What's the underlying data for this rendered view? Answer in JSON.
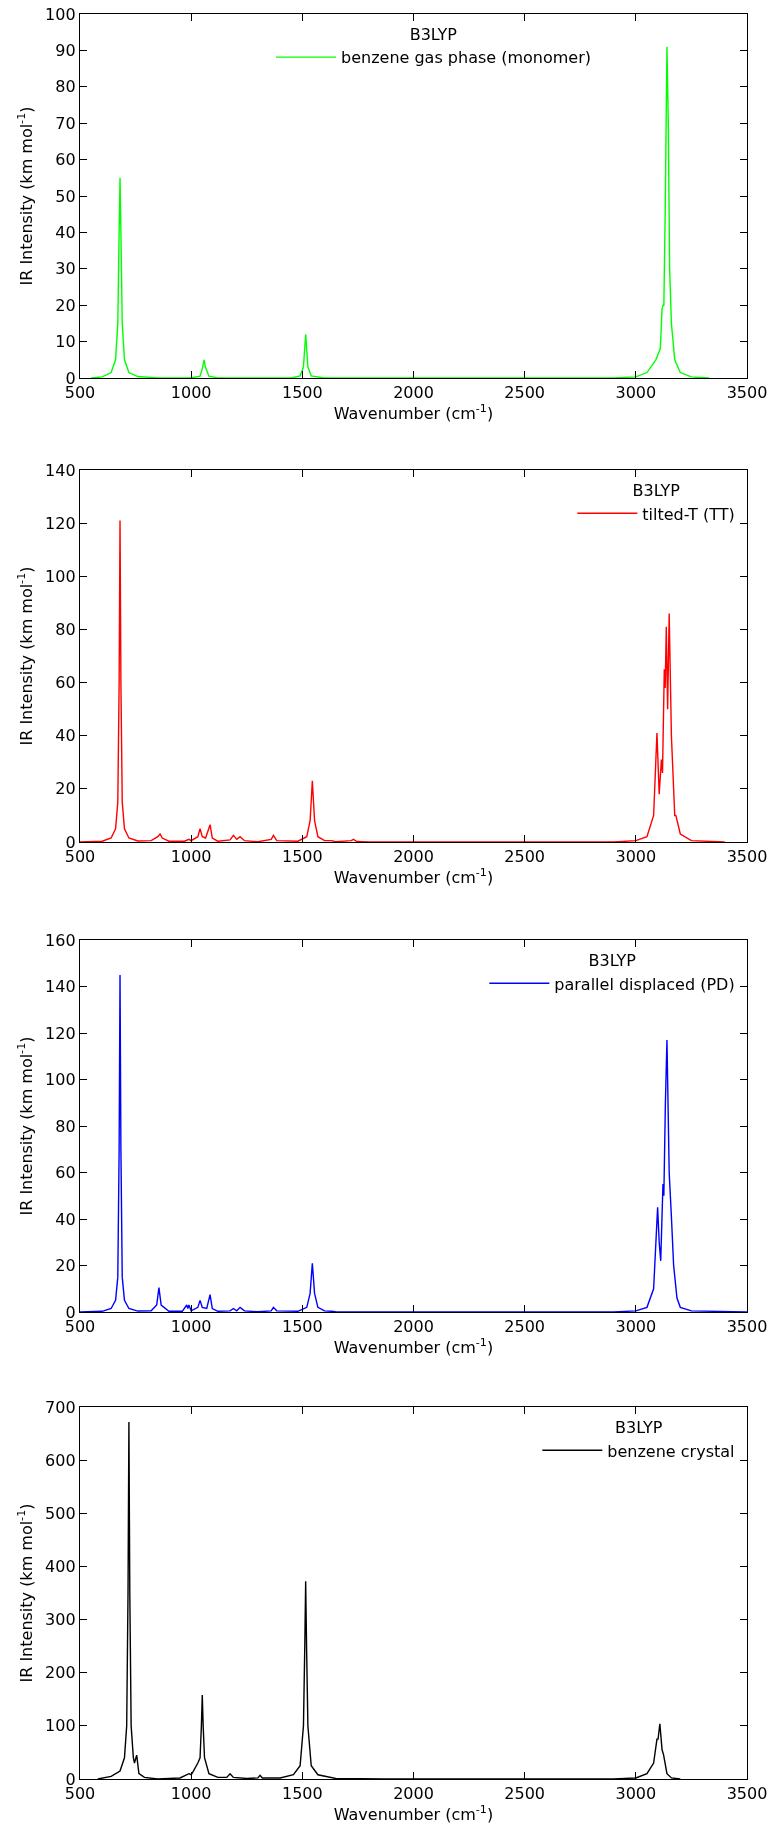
{
  "chart_data": [
    {
      "type": "line",
      "xlabel": "Wavenumber (cm$^{-1}$)",
      "ylabel": "IR Intensity (km mol$^{-1}$)",
      "legend_title": "B3LYP",
      "legend": "top",
      "xlim": [
        500,
        3500
      ],
      "ylim": [
        0,
        100
      ],
      "xticks": [
        500,
        1000,
        1500,
        2000,
        2500,
        3000,
        3500
      ],
      "yticks": [
        0,
        10,
        20,
        30,
        40,
        50,
        60,
        70,
        80,
        90,
        100
      ],
      "series": [
        {
          "name": "benzene gas phase (monomer)",
          "color": "#00ff00",
          "x": [
            550,
            600,
            640,
            660,
            670,
            676,
            680,
            684,
            690,
            700,
            720,
            760,
            850,
            1000,
            1040,
            1052,
            1058,
            1064,
            1080,
            1120,
            1450,
            1490,
            1505,
            1515,
            1525,
            1540,
            1600,
            2900,
            3000,
            3050,
            3090,
            3110,
            3118,
            3122,
            3126,
            3132,
            3140,
            3146,
            3152,
            3160,
            3175,
            3200,
            3250,
            3330
          ],
          "values": [
            0,
            0.3,
            1.5,
            5,
            15,
            40,
            55,
            40,
            15,
            5,
            1.5,
            0.4,
            0,
            0,
            0.5,
            3,
            5,
            3,
            0.5,
            0,
            0,
            0.6,
            3,
            12,
            3,
            0.6,
            0,
            0,
            0.3,
            1.5,
            5,
            8,
            19,
            20,
            20,
            45,
            91,
            70,
            30,
            15,
            5,
            1.5,
            0.3,
            0
          ]
        }
      ]
    },
    {
      "type": "line",
      "xlabel": "Wavenumber (cm$^{-1}$)",
      "ylabel": "IR Intensity (km mol$^{-1}$)",
      "legend_title": "B3LYP",
      "legend": "top right",
      "xlim": [
        500,
        3500
      ],
      "ylim": [
        0,
        140
      ],
      "xticks": [
        500,
        1000,
        1500,
        2000,
        2500,
        3000,
        3500
      ],
      "yticks": [
        0,
        20,
        40,
        60,
        80,
        100,
        120,
        140
      ],
      "series": [
        {
          "name": "tilted-T (TT)",
          "color": "#ff0000",
          "x": [
            500,
            600,
            640,
            660,
            670,
            676,
            680,
            684,
            690,
            700,
            720,
            760,
            820,
            850,
            860,
            870,
            900,
            970,
            990,
            1000,
            1030,
            1040,
            1050,
            1065,
            1085,
            1095,
            1120,
            1175,
            1190,
            1205,
            1220,
            1240,
            1300,
            1360,
            1370,
            1385,
            1480,
            1520,
            1535,
            1545,
            1555,
            1570,
            1600,
            1630,
            1650,
            1720,
            1730,
            1745,
            1800,
            2900,
            3000,
            3050,
            3080,
            3095,
            3105,
            3115,
            3120,
            3128,
            3132,
            3137,
            3143,
            3150,
            3160,
            3175,
            3180,
            3200,
            3250,
            3400
          ],
          "values": [
            0,
            0.3,
            1.5,
            5,
            15,
            60,
            121,
            60,
            15,
            5,
            1.5,
            0.4,
            0.5,
            2,
            3,
            1.5,
            0.3,
            0.3,
            1,
            0.5,
            2,
            5,
            2,
            1.5,
            6.5,
            1.5,
            0.3,
            0.8,
            2.5,
            1,
            2,
            0.5,
            0.1,
            1,
            2.5,
            0.5,
            0.3,
            2,
            8,
            23,
            8,
            2,
            0.5,
            0.5,
            0.1,
            0.5,
            1,
            0.2,
            0,
            0,
            0.5,
            2,
            10,
            41,
            18,
            31,
            26,
            65,
            58,
            81,
            50,
            86,
            40,
            10,
            10,
            3,
            0.5,
            0
          ]
        }
      ]
    },
    {
      "type": "line",
      "xlabel": "Wavenumber (cm$^{-1}$)",
      "ylabel": "IR Intensity (km mol$^{-1}$)",
      "legend_title": "B3LYP",
      "legend": "top right",
      "xlim": [
        500,
        3500
      ],
      "ylim": [
        0,
        160
      ],
      "xticks": [
        500,
        1000,
        1500,
        2000,
        2500,
        3000,
        3500
      ],
      "yticks": [
        0,
        20,
        40,
        60,
        80,
        100,
        120,
        140,
        160
      ],
      "series": [
        {
          "name": "parallel displaced (PD)",
          "color": "#0000ff",
          "x": [
            500,
            600,
            640,
            660,
            670,
            676,
            680,
            684,
            690,
            700,
            720,
            760,
            820,
            845,
            855,
            865,
            900,
            960,
            980,
            985,
            990,
            1000,
            1030,
            1040,
            1050,
            1070,
            1085,
            1095,
            1120,
            1175,
            1190,
            1205,
            1220,
            1240,
            1300,
            1360,
            1370,
            1385,
            1480,
            1520,
            1535,
            1545,
            1555,
            1570,
            1600,
            1630,
            1650,
            1800,
            2900,
            3000,
            3050,
            3080,
            3098,
            3105,
            3112,
            3122,
            3126,
            3133,
            3140,
            3150,
            3160,
            3170,
            3185,
            3200,
            3250,
            3500
          ],
          "values": [
            0,
            0.3,
            1.5,
            5,
            15,
            70,
            145,
            70,
            15,
            5,
            1.5,
            0.4,
            0.5,
            3,
            10.5,
            3,
            0.3,
            0.3,
            3,
            1.5,
            3,
            0.5,
            2,
            5,
            2,
            1.5,
            7.5,
            1.5,
            0.3,
            0.5,
            1.5,
            0.5,
            2,
            0.5,
            0.1,
            0.5,
            2,
            0.5,
            0.3,
            2,
            8,
            21,
            8,
            2,
            0.5,
            0.3,
            0.1,
            0,
            0,
            0.5,
            2,
            10,
            45,
            30,
            22,
            55,
            50,
            90,
            117,
            60,
            41,
            20,
            6,
            2,
            0.5,
            0
          ]
        }
      ]
    },
    {
      "type": "line",
      "xlabel": "Wavenumber (cm$^{-1}$)",
      "ylabel": "IR Intensity (km mol$^{-1}$)",
      "legend_title": "B3LYP",
      "legend": "top right",
      "xlim": [
        500,
        3500
      ],
      "ylim": [
        0,
        700
      ],
      "xticks": [
        500,
        1000,
        1500,
        2000,
        2500,
        3000,
        3500
      ],
      "yticks": [
        0,
        100,
        200,
        300,
        400,
        500,
        600,
        700
      ],
      "series": [
        {
          "name": "benzene crystal",
          "color": "#000000",
          "x": [
            580,
            640,
            680,
            700,
            710,
            716,
            720,
            724,
            730,
            740,
            745,
            755,
            765,
            790,
            850,
            950,
            990,
            1000,
            1010,
            1030,
            1040,
            1046,
            1050,
            1054,
            1060,
            1080,
            1120,
            1160,
            1175,
            1190,
            1250,
            1300,
            1310,
            1320,
            1400,
            1460,
            1490,
            1505,
            1511,
            1515,
            1519,
            1525,
            1540,
            1570,
            1650,
            1870,
            2900,
            3000,
            3050,
            3080,
            3095,
            3100,
            3108,
            3118,
            3125,
            3140,
            3160,
            3200
          ],
          "values": [
            0,
            5,
            15,
            40,
            100,
            350,
            672,
            350,
            100,
            40,
            30,
            45,
            10,
            3,
            0,
            2,
            10,
            8,
            15,
            30,
            40,
            100,
            158,
            100,
            40,
            10,
            3,
            3,
            10,
            3,
            1,
            2,
            7,
            2,
            2,
            8,
            25,
            100,
            250,
            372,
            250,
            100,
            25,
            8,
            1,
            0,
            0,
            2,
            10,
            30,
            75,
            75,
            104,
            55,
            45,
            10,
            2,
            0
          ]
        }
      ]
    }
  ]
}
